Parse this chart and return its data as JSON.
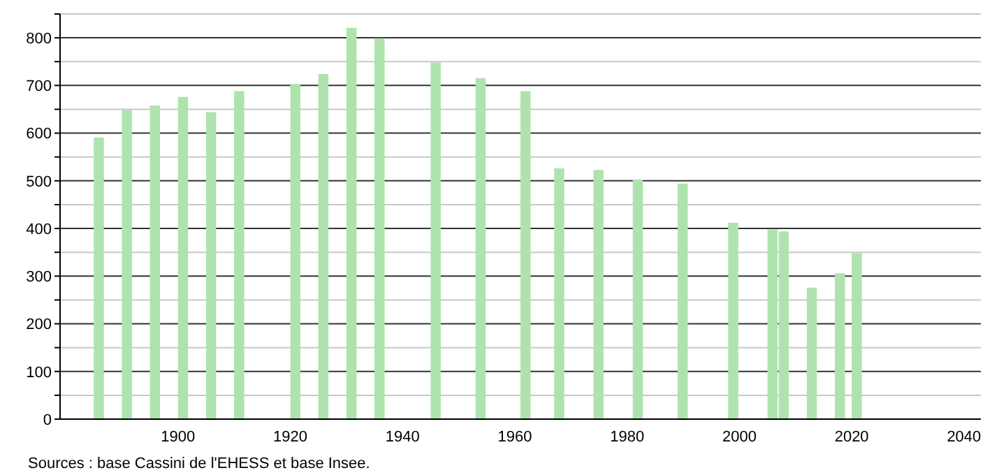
{
  "chart_data": {
    "type": "bar",
    "x": [
      1886,
      1891,
      1896,
      1901,
      1906,
      1911,
      1921,
      1926,
      1931,
      1936,
      1946,
      1954,
      1962,
      1968,
      1975,
      1982,
      1990,
      1999,
      2006,
      2008,
      2013,
      2018,
      2021
    ],
    "values": [
      591,
      649,
      658,
      676,
      644,
      688,
      703,
      724,
      821,
      799,
      748,
      715,
      688,
      526,
      523,
      503,
      494,
      412,
      398,
      394,
      276,
      306,
      348
    ],
    "color": "#aee3ae",
    "xlim": [
      1879,
      2043
    ],
    "xticks": [
      1900,
      1920,
      1940,
      1960,
      1980,
      2000,
      2020,
      2040
    ],
    "ylim": [
      0,
      850
    ],
    "yticks": [
      0,
      {
        "value": 50,
        "label": null
      },
      100,
      {
        "value": 150,
        "label": null
      },
      200,
      {
        "value": 250,
        "label": null
      },
      300,
      {
        "value": 350,
        "label": null
      },
      400,
      {
        "value": 450,
        "label": null
      },
      500,
      {
        "value": 550,
        "label": null
      },
      600,
      {
        "value": 650,
        "label": null
      },
      700,
      {
        "value": 750,
        "label": null
      },
      800,
      {
        "value": 850,
        "label": null
      }
    ],
    "grid": "y",
    "annotations": [
      "Sources : base Cassini de l'EHESS et base Insee."
    ]
  }
}
